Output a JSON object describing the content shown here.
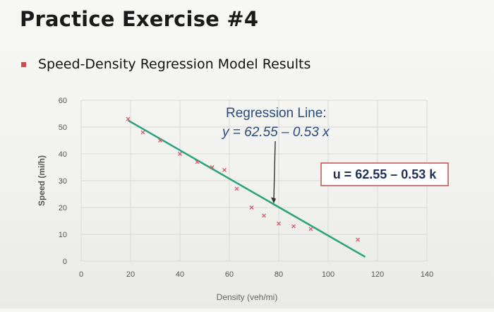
{
  "slide": {
    "title": "Practice Exercise #4",
    "bullet": "Speed-Density Regression Model Results"
  },
  "colors": {
    "regression_line": "#2aa37c",
    "points": "#d25a6a",
    "annotation": "#2c4a7a",
    "box_border": "#c0504d"
  },
  "chart_data": {
    "type": "scatter",
    "xlabel": "Density (veh/mi)",
    "ylabel": "Speed (mi/h)",
    "xlim": [
      0,
      140
    ],
    "ylim": [
      0,
      60
    ],
    "x_ticks": [
      "0",
      "20",
      "40",
      "60",
      "80",
      "100",
      "120",
      "140"
    ],
    "y_ticks": [
      "0",
      "10",
      "20",
      "30",
      "40",
      "50",
      "60"
    ],
    "grid": true,
    "points": [
      {
        "x": 19,
        "y": 53
      },
      {
        "x": 25,
        "y": 48
      },
      {
        "x": 32,
        "y": 45
      },
      {
        "x": 40,
        "y": 40
      },
      {
        "x": 47,
        "y": 37
      },
      {
        "x": 53,
        "y": 35
      },
      {
        "x": 58,
        "y": 34
      },
      {
        "x": 63,
        "y": 27
      },
      {
        "x": 69,
        "y": 20
      },
      {
        "x": 74,
        "y": 17
      },
      {
        "x": 80,
        "y": 14
      },
      {
        "x": 86,
        "y": 13
      },
      {
        "x": 93,
        "y": 12
      },
      {
        "x": 112,
        "y": 8
      }
    ],
    "regression": {
      "intercept": 62.55,
      "slope": -0.53,
      "x_start": 19,
      "x_end": 115
    },
    "annotations": {
      "callout_title": "Regression Line:",
      "callout_equation": "y = 62.55 – 0.53 x",
      "callout_target_x": 78,
      "box_equation": "u = 62.55 – 0.53 k"
    }
  }
}
